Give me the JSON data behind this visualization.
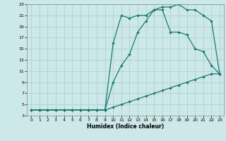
{
  "xlabel": "Humidex (Indice chaleur)",
  "bg_color": "#cce8e8",
  "grid_color": "#aacccc",
  "line_color": "#1a7a6e",
  "xlim": [
    -0.5,
    23.5
  ],
  "ylim": [
    3,
    23
  ],
  "xticks": [
    0,
    1,
    2,
    3,
    4,
    5,
    6,
    7,
    8,
    9,
    10,
    11,
    12,
    13,
    14,
    15,
    16,
    17,
    18,
    19,
    20,
    21,
    22,
    23
  ],
  "yticks": [
    3,
    5,
    7,
    9,
    11,
    13,
    15,
    17,
    19,
    21,
    23
  ],
  "line_bot_x": [
    0,
    1,
    2,
    3,
    4,
    5,
    6,
    7,
    8,
    9,
    10,
    11,
    12,
    13,
    14,
    15,
    16,
    17,
    18,
    19,
    20,
    21,
    22,
    23
  ],
  "line_bot_y": [
    4,
    4,
    4,
    4,
    4,
    4,
    4,
    4,
    4,
    4,
    4.5,
    5,
    5.5,
    6,
    6.5,
    7,
    7.5,
    8,
    8.5,
    9,
    9.5,
    10,
    10.5,
    10.5
  ],
  "line_mid_x": [
    0,
    1,
    2,
    3,
    4,
    5,
    6,
    7,
    8,
    9,
    10,
    11,
    12,
    13,
    14,
    15,
    16,
    17,
    18,
    19,
    20,
    21,
    22,
    23
  ],
  "line_mid_y": [
    4,
    4,
    4,
    4,
    4,
    4,
    4,
    4,
    4,
    4,
    9,
    12,
    14,
    18,
    20,
    22,
    22,
    18,
    18,
    17.5,
    15,
    14.5,
    12,
    10.5
  ],
  "line_top_x": [
    0,
    1,
    2,
    3,
    4,
    5,
    6,
    7,
    8,
    9,
    10,
    11,
    12,
    13,
    14,
    15,
    16,
    17,
    18,
    19,
    20,
    21,
    22,
    23
  ],
  "line_top_y": [
    4,
    4,
    4,
    4,
    4,
    4,
    4,
    4,
    4,
    4,
    16,
    21,
    20.5,
    21,
    21,
    22,
    22.5,
    22.5,
    23,
    22,
    22,
    21,
    20,
    10.5
  ]
}
